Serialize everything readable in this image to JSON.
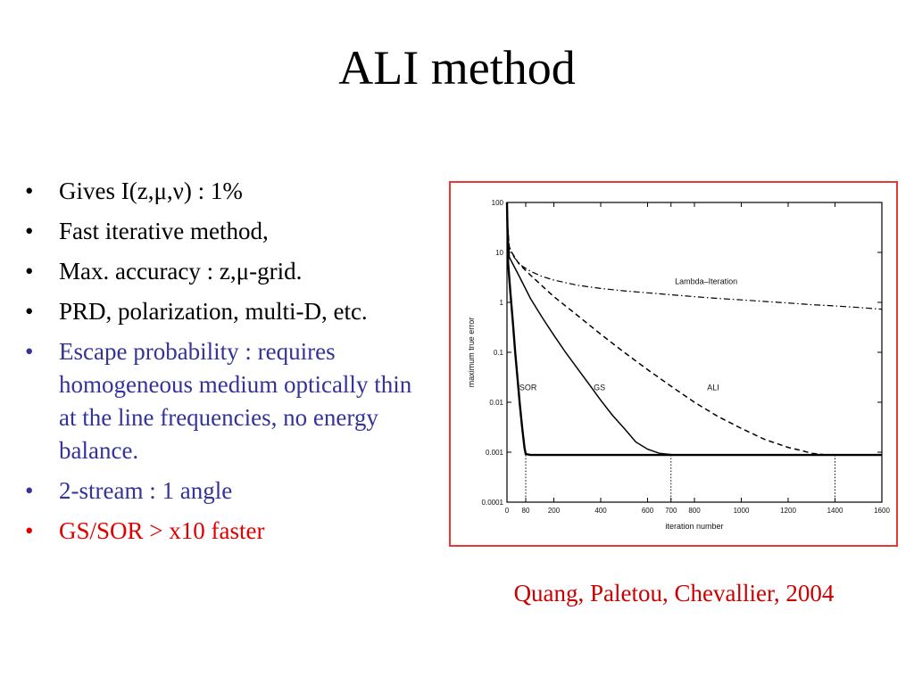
{
  "slide": {
    "title": "ALI method",
    "bullets": [
      {
        "text": "Gives I(z,μ,ν) : 1%",
        "color": "#000000"
      },
      {
        "text": "Fast iterative method,",
        "color": "#000000"
      },
      {
        "text": "Max. accuracy : z,μ-grid.",
        "color": "#000000"
      },
      {
        "text": "PRD, polarization, multi-D, etc.",
        "color": "#000000"
      },
      {
        "text": "Escape probability : requires homogeneous medium optically thin at the line frequencies, no energy balance.",
        "color": "#33339a"
      },
      {
        "text": "2-stream : 1 angle",
        "color": "#33339a"
      },
      {
        "text": "GS/SOR > x10 faster",
        "color": "#e00000"
      }
    ],
    "bullet_glyph": "•",
    "citation": "Quang, Paletou, Chevallier, 2004",
    "frame_color": "#e53935"
  },
  "chart_data": {
    "type": "line",
    "xlabel": "iteration number",
    "ylabel": "maximum true error",
    "xlim": [
      0,
      1600
    ],
    "ylim": [
      0.0001,
      100
    ],
    "yscale": "log",
    "x_ticks": [
      0,
      80,
      200,
      400,
      600,
      700,
      800,
      1000,
      1200,
      1400,
      1600
    ],
    "y_ticks": [
      {
        "value": 0.0001,
        "label": "0.0001"
      },
      {
        "value": 0.001,
        "label": "0.001"
      },
      {
        "value": 0.01,
        "label": "0.01"
      },
      {
        "value": 0.1,
        "label": "0.1"
      },
      {
        "value": 1,
        "label": "1"
      },
      {
        "value": 10,
        "label": "10"
      },
      {
        "value": 100,
        "label": "100"
      }
    ],
    "grid": false,
    "series": [
      {
        "name": "Lambda-Iteration",
        "style": "dashdot",
        "x": [
          0,
          10,
          30,
          60,
          100,
          150,
          200,
          300,
          400,
          500,
          600,
          700,
          800,
          900,
          1000,
          1100,
          1200,
          1300,
          1400,
          1500,
          1600
        ],
        "y": [
          50,
          13,
          8,
          5.5,
          4.2,
          3.3,
          2.8,
          2.2,
          1.9,
          1.7,
          1.55,
          1.42,
          1.3,
          1.2,
          1.12,
          1.04,
          0.97,
          0.9,
          0.85,
          0.79,
          0.73
        ]
      },
      {
        "name": "ALI",
        "style": "dashed",
        "x": [
          0,
          10,
          50,
          100,
          200,
          300,
          400,
          500,
          600,
          700,
          800,
          900,
          1000,
          1100,
          1200,
          1250,
          1300,
          1350,
          1400,
          1500,
          1600
        ],
        "y": [
          50,
          12,
          6,
          3.5,
          1.3,
          0.55,
          0.23,
          0.1,
          0.045,
          0.021,
          0.01,
          0.0052,
          0.003,
          0.0018,
          0.00125,
          0.0011,
          0.00095,
          0.0009,
          0.00088,
          0.00088,
          0.00088
        ]
      },
      {
        "name": "GS",
        "style": "solid",
        "x": [
          0,
          10,
          50,
          100,
          150,
          200,
          250,
          300,
          350,
          400,
          450,
          500,
          550,
          600,
          650,
          700,
          800,
          1000,
          1200,
          1400,
          1600
        ],
        "y": [
          50,
          8,
          3.5,
          1.2,
          0.5,
          0.22,
          0.1,
          0.048,
          0.023,
          0.011,
          0.0055,
          0.003,
          0.0016,
          0.00115,
          0.00095,
          0.0009,
          0.00088,
          0.00088,
          0.00088,
          0.00088,
          0.00088
        ]
      },
      {
        "name": "SOR",
        "style": "solid-thick",
        "x": [
          0,
          5,
          15,
          25,
          35,
          45,
          55,
          65,
          75,
          80,
          100,
          200,
          400,
          600,
          800,
          1000,
          1200,
          1400,
          1600
        ],
        "y": [
          100,
          6,
          1.5,
          0.4,
          0.1,
          0.03,
          0.009,
          0.003,
          0.0012,
          0.00092,
          0.00088,
          0.00088,
          0.00088,
          0.00088,
          0.00088,
          0.00088,
          0.00088,
          0.00088,
          0.00088
        ]
      }
    ],
    "annotations": [
      {
        "text": "Lambda–Iteration",
        "x": 850,
        "y": 2.3
      },
      {
        "text": "ALI",
        "x": 880,
        "y": 0.0175
      },
      {
        "text": "GS",
        "x": 395,
        "y": 0.0175
      },
      {
        "text": "SOR",
        "x": 90,
        "y": 0.0175
      }
    ],
    "reference_lines": [
      80,
      700,
      1400
    ],
    "plateau": 0.00088
  }
}
